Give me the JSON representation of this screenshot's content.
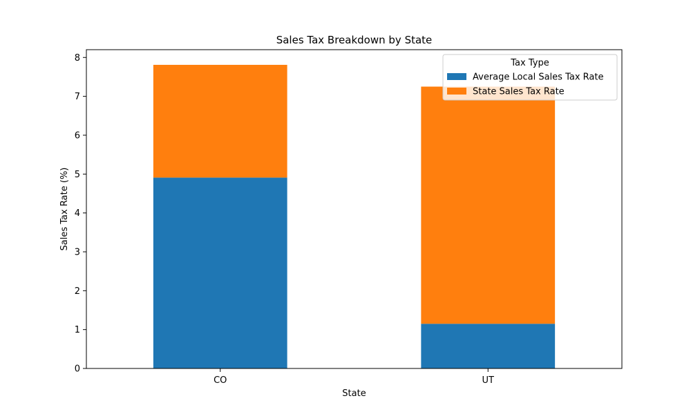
{
  "chart_data": {
    "type": "bar",
    "stacked": true,
    "title": "Sales Tax Breakdown by State",
    "xlabel": "State",
    "ylabel": "Sales Tax Rate (%)",
    "categories": [
      "CO",
      "UT"
    ],
    "series": [
      {
        "name": "Average Local Sales Tax Rate",
        "values": [
          4.91,
          1.15
        ],
        "color": "#1f77b4"
      },
      {
        "name": "State Sales Tax Rate",
        "values": [
          2.9,
          6.1
        ],
        "color": "#ff7f0e"
      }
    ],
    "ylim": [
      0,
      8.2
    ],
    "yticks": [
      0,
      1,
      2,
      3,
      4,
      5,
      6,
      7,
      8
    ],
    "legend": {
      "title": "Tax Type",
      "placement": "top-right"
    },
    "grid": false
  }
}
